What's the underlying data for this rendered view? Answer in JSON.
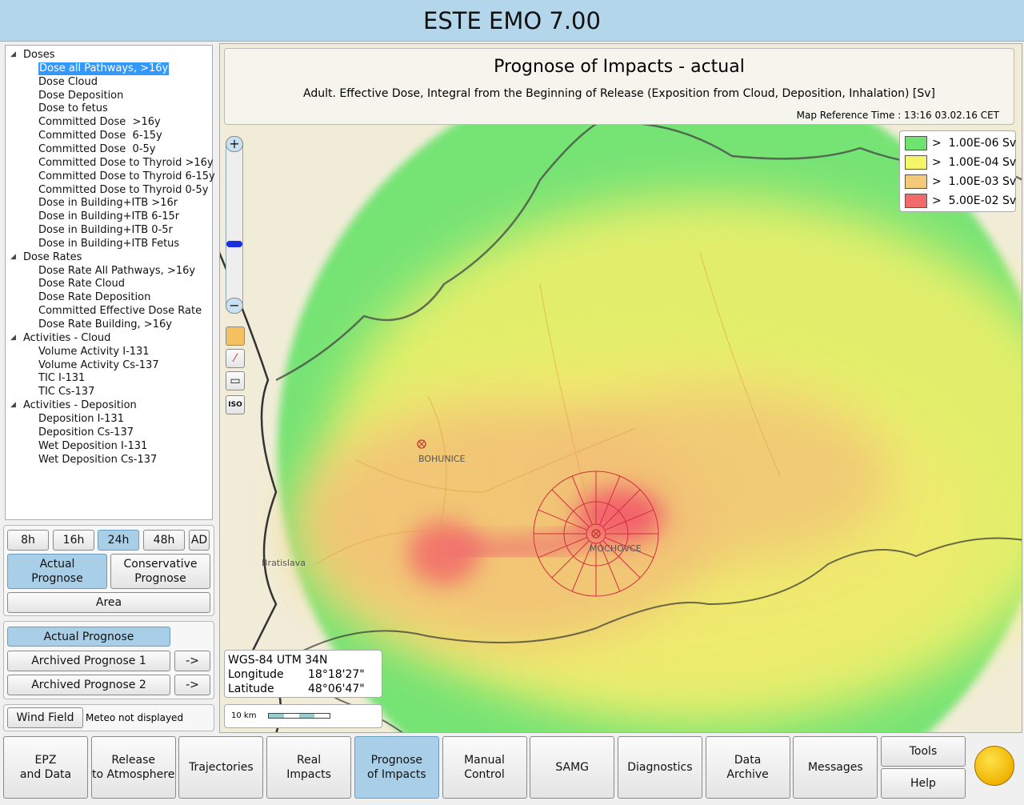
{
  "header": {
    "title": "ESTE EMO 7.00"
  },
  "tree": [
    {
      "label": "Doses",
      "items": [
        "Dose all Pathways, >16y",
        "Dose Cloud",
        "Dose Deposition",
        "Dose to fetus",
        "Committed Dose  >16y",
        "Committed Dose  6-15y",
        "Committed Dose  0-5y",
        "Committed Dose to Thyroid >16y",
        "Committed Dose to Thyroid 6-15y",
        "Committed Dose to Thyroid 0-5y",
        "Dose in Building+ITB >16r",
        "Dose in Building+ITB 6-15r",
        "Dose in Building+ITB 0-5r",
        "Dose in Building+ITB Fetus"
      ]
    },
    {
      "label": "Dose Rates",
      "items": [
        "Dose Rate All Pathways, >16y",
        "Dose Rate Cloud",
        "Dose Rate Deposition",
        "Committed Effective Dose Rate",
        "Dose Rate Building, >16y"
      ]
    },
    {
      "label": "Activities - Cloud",
      "items": [
        "Volume Activity I-131",
        "Volume Activity Cs-137",
        "TIC I-131",
        "TIC Cs-137"
      ]
    },
    {
      "label": "Activities - Deposition",
      "items": [
        "Deposition I-131",
        "Deposition Cs-137",
        "Wet Deposition I-131",
        "Wet Deposition Cs-137"
      ]
    }
  ],
  "duration_buttons": [
    "8h",
    "16h",
    "24h",
    "48h",
    "AD"
  ],
  "prognose_buttons": [
    "Actual\nPrognose",
    "Conservative\nPrognose"
  ],
  "area_button": "Area",
  "archive": {
    "actual": "Actual Prognose",
    "rows": [
      {
        "label": "Archived Prognose 1",
        "action": "->"
      },
      {
        "label": "Archived Prognose 2",
        "action": "->"
      }
    ]
  },
  "wind": {
    "button": "Wind Field",
    "status": "Meteo not displayed"
  },
  "map": {
    "title": "Prognose of Impacts - actual",
    "subtitle": "Adult. Effective Dose, Integral from the Beginning of Release (Exposition from Cloud, Deposition, Inhalation) [Sv]",
    "reference_time": "Map Reference Time : 13:16 03.02.16 CET",
    "legend": [
      {
        "label": ">  1.00E-06 Sv",
        "color": "#6fe36f"
      },
      {
        "label": ">  1.00E-04 Sv",
        "color": "#f5f56a"
      },
      {
        "label": ">  1.00E-03 Sv",
        "color": "#f5c97a"
      },
      {
        "label": ">  5.00E-02 Sv",
        "color": "#f26b6b"
      }
    ],
    "places": [
      "BOHUNICE",
      "MOCHOVCE",
      "Bratislava"
    ],
    "zoom_in": "+",
    "zoom_out": "−",
    "tool_iso": "ISO",
    "coordinates": {
      "system": "WGS-84 UTM 34N",
      "longitude_label": "Longitude",
      "longitude": "18°18'27\"",
      "latitude_label": "Latitude",
      "latitude": "48°06'47\""
    },
    "scale": "10 km"
  },
  "nav": [
    "EPZ\nand Data",
    "Release\nto Atmosphere",
    "Trajectories",
    "Real\nImpacts",
    "Prognose\nof Impacts",
    "Manual\nControl",
    "SAMG",
    "Diagnostics",
    "Data\nArchive",
    "Messages"
  ],
  "tools": "Tools",
  "help": "Help"
}
